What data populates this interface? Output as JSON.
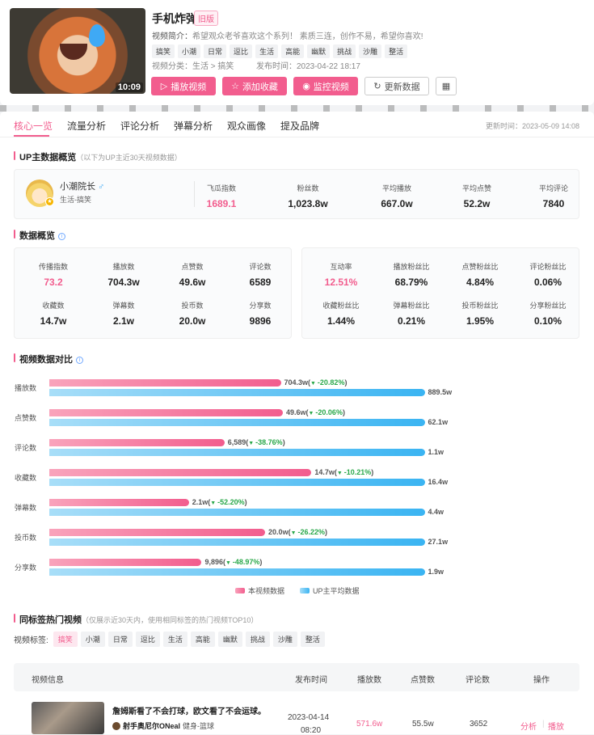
{
  "video": {
    "title": "手机炸弹",
    "badge": "旧版",
    "duration": "10:09",
    "desc_label": "视频简介：",
    "desc": "希望观众老爷喜欢这个系列！  素质三连，创作不易，希望你喜欢!",
    "tags": [
      "搞笑",
      "小潮",
      "日常",
      "逗比",
      "生活",
      "高能",
      "幽默",
      "挑战",
      "沙雕",
      "整活"
    ],
    "category_label": "视频分类：",
    "category": "生活 > 搞笑",
    "publish_label": "发布时间：",
    "publish_time": "2023-04-22 18:17"
  },
  "actions": {
    "play": "播放视频",
    "fav": "添加收藏",
    "monitor": "监控视频",
    "refresh": "更新数据"
  },
  "tabs": [
    "核心一览",
    "流量分析",
    "评论分析",
    "弹幕分析",
    "观众画像",
    "提及品牌"
  ],
  "update_time": "更新时间：2023-05-09 14:08",
  "up_section": {
    "title": "UP主数据概览",
    "sub": "（以下为UP主近30天视频数据）"
  },
  "up": {
    "name": "小潮院长",
    "gender": "♂",
    "category": "生活-搞笑",
    "level": "★",
    "stats": [
      {
        "label": "飞瓜指数",
        "value": "1689.1"
      },
      {
        "label": "粉丝数",
        "value": "1,023.8w"
      },
      {
        "label": "平均播放",
        "value": "667.0w"
      },
      {
        "label": "平均点赞",
        "value": "52.2w"
      },
      {
        "label": "平均评论",
        "value": "7840"
      }
    ]
  },
  "overview_title": "数据概览",
  "overview_left": [
    {
      "label": "传播指数",
      "value": "73.2"
    },
    {
      "label": "播放数",
      "value": "704.3w"
    },
    {
      "label": "点赞数",
      "value": "49.6w"
    },
    {
      "label": "评论数",
      "value": "6589"
    },
    {
      "label": "收藏数",
      "value": "14.7w"
    },
    {
      "label": "弹幕数",
      "value": "2.1w"
    },
    {
      "label": "投币数",
      "value": "20.0w"
    },
    {
      "label": "分享数",
      "value": "9896"
    }
  ],
  "overview_right": [
    {
      "label": "互动率",
      "value": "12.51%"
    },
    {
      "label": "播放粉丝比",
      "value": "68.79%"
    },
    {
      "label": "点赞粉丝比",
      "value": "4.84%"
    },
    {
      "label": "评论粉丝比",
      "value": "0.06%"
    },
    {
      "label": "收藏粉丝比",
      "value": "1.44%"
    },
    {
      "label": "弹幕粉丝比",
      "value": "0.21%"
    },
    {
      "label": "投币粉丝比",
      "value": "1.95%"
    },
    {
      "label": "分享粉丝比",
      "value": "0.10%"
    }
  ],
  "compare_title": "视频数据对比",
  "chart_data": {
    "type": "bar",
    "orientation": "horizontal",
    "categories": [
      "播放数",
      "点赞数",
      "评论数",
      "收藏数",
      "弹幕数",
      "投币数",
      "分享数"
    ],
    "series": [
      {
        "name": "本视频数据",
        "values": [
          704.3,
          49.6,
          0.6589,
          14.7,
          2.1,
          20.0,
          0.9896
        ],
        "labels": [
          "704.3w",
          "49.6w",
          "6,589",
          "14.7w",
          "2.1w",
          "20.0w",
          "9,896"
        ]
      },
      {
        "name": "UP主平均数据",
        "values": [
          889.5,
          62.1,
          1.1,
          16.4,
          4.4,
          27.1,
          1.9
        ],
        "labels": [
          "889.5w",
          "62.1w",
          "1.1w",
          "16.4w",
          "4.4w",
          "27.1w",
          "1.9w"
        ]
      }
    ],
    "changes": [
      "-20.82%",
      "-20.06%",
      "-38.76%",
      "-10.21%",
      "-52.20%",
      "-26.22%",
      "-48.97%"
    ],
    "legend_position": "bottom-center",
    "colors": {
      "current": "#f25d8e",
      "average": "#3ab4f2",
      "change": "#2aa84a"
    }
  },
  "hot_section": {
    "title": "同标签热门视频",
    "sub": "（仅展示近30天内，使用相同标签的热门视频TOP10）"
  },
  "video_tags_label": "视频标签:",
  "table": {
    "headers": [
      "视频信息",
      "发布时间",
      "播放数",
      "点赞数",
      "评论数",
      "操作"
    ],
    "row": {
      "title": "詹姆斯看了不会打球，欧文看了不会运球。",
      "author": "射手奥尼尔ONeal",
      "category": "健身-篮球",
      "date": "2023-04-14",
      "time": "08:20",
      "plays": "571.6w",
      "likes": "55.5w",
      "comments": "3652",
      "action_analyze": "分析",
      "action_play": "播放"
    }
  }
}
